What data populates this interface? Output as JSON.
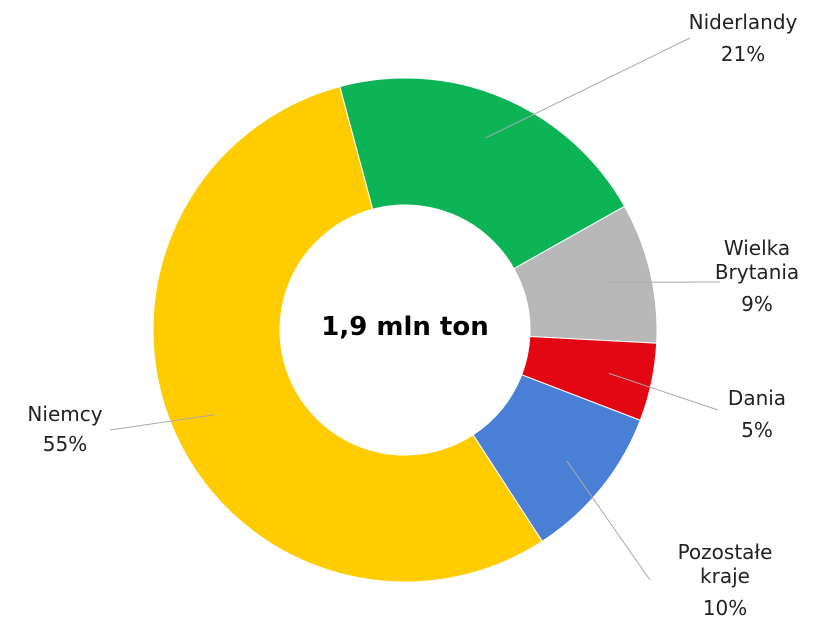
{
  "chart_data": {
    "type": "donut",
    "center_label": "1,9 mln ton",
    "categories": [
      "Niderlandy",
      "Wielka Brytania",
      "Dania",
      "Pozostałe kraje",
      "Niemcy"
    ],
    "values": [
      21,
      9,
      5,
      10,
      55
    ],
    "value_labels": [
      "21%",
      "9%",
      "5%",
      "10%",
      "55%"
    ],
    "colors": [
      "#0db456",
      "#b8b8b8",
      "#e30613",
      "#4a7fd6",
      "#ffcc00"
    ]
  }
}
